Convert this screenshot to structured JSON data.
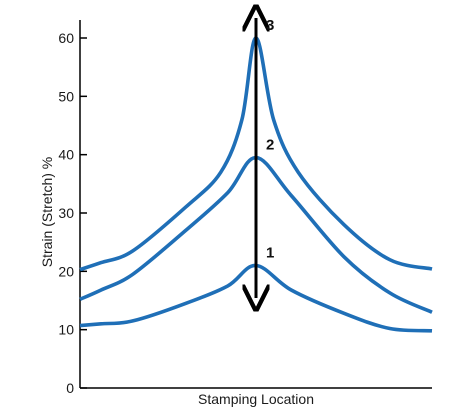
{
  "chart_data": {
    "type": "line",
    "title": "",
    "xlabel": "Stamping Location",
    "ylabel": "Strain (Stretch) %",
    "ylim": [
      0,
      60
    ],
    "yticks": [
      0,
      10,
      20,
      30,
      40,
      50,
      60
    ],
    "grid": false,
    "legend": "none",
    "series_color": "#1f6fb7",
    "arrow_color": "#000000",
    "series": [
      {
        "label": "1",
        "points": [
          [
            0.0,
            10.7
          ],
          [
            0.06,
            11.0
          ],
          [
            0.15,
            11.5
          ],
          [
            0.3,
            14.5
          ],
          [
            0.42,
            17.5
          ],
          [
            0.5,
            21.0
          ],
          [
            0.6,
            16.8
          ],
          [
            0.75,
            12.8
          ],
          [
            0.88,
            10.2
          ],
          [
            1.0,
            9.8
          ]
        ]
      },
      {
        "label": "2",
        "points": [
          [
            0.0,
            15.2
          ],
          [
            0.06,
            16.8
          ],
          [
            0.15,
            19.5
          ],
          [
            0.3,
            27.0
          ],
          [
            0.42,
            33.5
          ],
          [
            0.5,
            39.5
          ],
          [
            0.6,
            33.0
          ],
          [
            0.75,
            22.5
          ],
          [
            0.88,
            16.3
          ],
          [
            1.0,
            13.0
          ]
        ]
      },
      {
        "label": "3",
        "points": [
          [
            0.0,
            20.3
          ],
          [
            0.06,
            21.5
          ],
          [
            0.15,
            23.5
          ],
          [
            0.3,
            31.0
          ],
          [
            0.4,
            37.0
          ],
          [
            0.46,
            46.0
          ],
          [
            0.5,
            60.0
          ],
          [
            0.55,
            46.0
          ],
          [
            0.62,
            37.0
          ],
          [
            0.75,
            28.0
          ],
          [
            0.88,
            22.0
          ],
          [
            1.0,
            20.4
          ]
        ]
      }
    ]
  }
}
